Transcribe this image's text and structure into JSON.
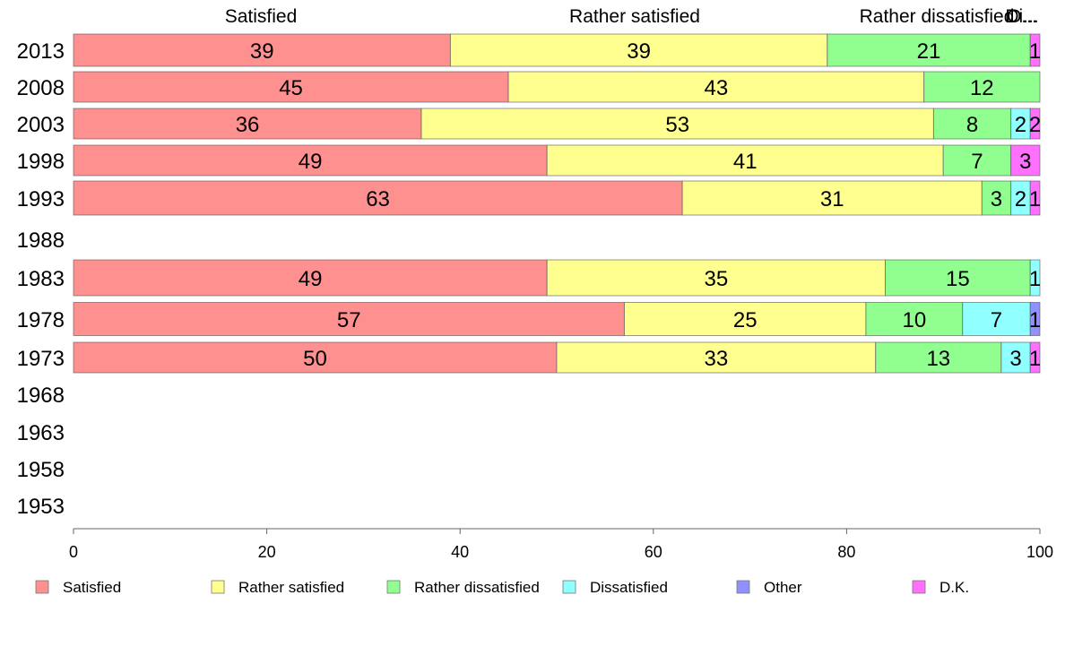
{
  "chart_data": {
    "type": "bar",
    "orientation": "horizontal",
    "stacked": true,
    "categories": [
      "2013",
      "2008",
      "2003",
      "1998",
      "1993",
      "1988",
      "1983",
      "1978",
      "1973",
      "1968",
      "1963",
      "1958",
      "1953"
    ],
    "series": [
      {
        "name": "Satisfied",
        "color": "#ff9090",
        "values": [
          39,
          45,
          36,
          49,
          63,
          null,
          49,
          57,
          50,
          null,
          null,
          null,
          null
        ]
      },
      {
        "name": "Rather satisfied",
        "color": "#ffff90",
        "values": [
          39,
          43,
          53,
          41,
          31,
          null,
          35,
          25,
          33,
          null,
          null,
          null,
          null
        ]
      },
      {
        "name": "Rather dissatisfied",
        "color": "#90ff90",
        "values": [
          21,
          12,
          8,
          7,
          3,
          null,
          15,
          10,
          13,
          null,
          null,
          null,
          null
        ]
      },
      {
        "name": "Dissatisfied",
        "color": "#90ffff",
        "values": [
          0,
          0,
          2,
          0,
          2,
          null,
          1,
          7,
          3,
          null,
          null,
          null,
          null
        ]
      },
      {
        "name": "Other",
        "color": "#9090ff",
        "values": [
          0,
          0,
          0,
          0,
          0,
          null,
          0,
          1,
          0,
          null,
          null,
          null,
          null
        ]
      },
      {
        "name": "D.K.",
        "color": "#ff70ff",
        "values": [
          1,
          0,
          2,
          3,
          1,
          null,
          0,
          0,
          1,
          null,
          null,
          null,
          null
        ]
      }
    ],
    "top_labels": [
      "Satisfied",
      "Rather satisfied",
      "Rather dissatisfied",
      "Di...",
      "O..."
    ],
    "x_ticks": [
      0,
      20,
      40,
      60,
      80,
      100
    ],
    "xlim": [
      0,
      100
    ],
    "grid": false,
    "legend_position": "bottom"
  }
}
